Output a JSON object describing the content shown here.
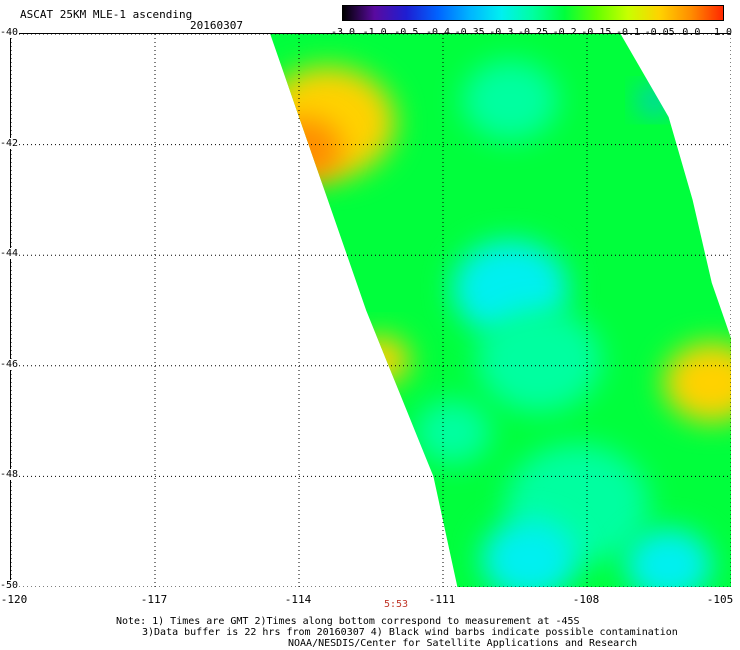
{
  "header": {
    "title": "ASCAT 25KM MLE-1 ascending",
    "date": "20160307"
  },
  "colorbar": {
    "labels": [
      "-3.0",
      "-1.0",
      "-0.5",
      "-0.4",
      "-0.35",
      "-0.3",
      "-0.25",
      "-0.2",
      "-0.15",
      "-0.1",
      "-0.05",
      "0.0",
      "1.0"
    ],
    "colors": [
      "#000000",
      "#5a0aa0",
      "#1e1ed2",
      "#0064ff",
      "#00b4ff",
      "#00f0f0",
      "#00ffa0",
      "#00ff3c",
      "#64ff00",
      "#c8ff00",
      "#ffd200",
      "#ff8c00",
      "#ff2800"
    ]
  },
  "axes": {
    "x_ticks": [
      "-120",
      "-117",
      "-114",
      "-111",
      "-108",
      "-105"
    ],
    "y_ticks": [
      "-40",
      "-42",
      "-44",
      "-46",
      "-48",
      "-50"
    ],
    "time_label": "5:53"
  },
  "notes": {
    "line1": "Note: 1) Times are GMT 2)Times along bottom correspond to measurement at -45S",
    "line2": "3)Data buffer is 22 hrs from 20160307 4) Black wind barbs indicate possible contamination",
    "line3": "NOAA/NESDIS/Center for Satellite Applications and Research"
  },
  "map_data": {
    "lon_range": [
      -120,
      -105
    ],
    "lat_range": [
      -50,
      -40
    ],
    "swath": {
      "left_edge": [
        [
          -114.6,
          -40
        ],
        [
          -112.6,
          -45
        ],
        [
          -111.2,
          -48
        ],
        [
          -110.7,
          -50
        ]
      ],
      "right_edge": [
        [
          -107.3,
          -40
        ],
        [
          -106.3,
          -41.5
        ],
        [
          -105.8,
          -43
        ],
        [
          -105.4,
          -44.5
        ],
        [
          -105,
          -45.5
        ],
        [
          -105,
          -50
        ]
      ]
    },
    "fields": [
      {
        "lon": -113.4,
        "lat": -41.6,
        "value": -0.05,
        "size": 1.4
      },
      {
        "lon": -113.9,
        "lat": -42.1,
        "value": 0.0,
        "size": 0.8
      },
      {
        "lon": -112.3,
        "lat": -45.9,
        "value": -0.05,
        "size": 0.6
      },
      {
        "lon": -105.4,
        "lat": -46.3,
        "value": -0.05,
        "size": 1.0
      },
      {
        "lon": -109.6,
        "lat": -44.6,
        "value": -0.3,
        "size": 1.2
      },
      {
        "lon": -109.0,
        "lat": -45.9,
        "value": -0.25,
        "size": 1.3
      },
      {
        "lon": -108.2,
        "lat": -48.5,
        "value": -0.25,
        "size": 1.5
      },
      {
        "lon": -109.2,
        "lat": -49.5,
        "value": -0.3,
        "size": 1.0
      },
      {
        "lon": -106.3,
        "lat": -49.6,
        "value": -0.3,
        "size": 0.9
      },
      {
        "lon": -109.6,
        "lat": -41.2,
        "value": -0.25,
        "size": 1.0
      },
      {
        "lon": -106.6,
        "lat": -41.2,
        "value": -0.35,
        "size": 0.3
      },
      {
        "lon": -110.8,
        "lat": -47.2,
        "value": -0.25,
        "size": 0.8
      }
    ]
  }
}
